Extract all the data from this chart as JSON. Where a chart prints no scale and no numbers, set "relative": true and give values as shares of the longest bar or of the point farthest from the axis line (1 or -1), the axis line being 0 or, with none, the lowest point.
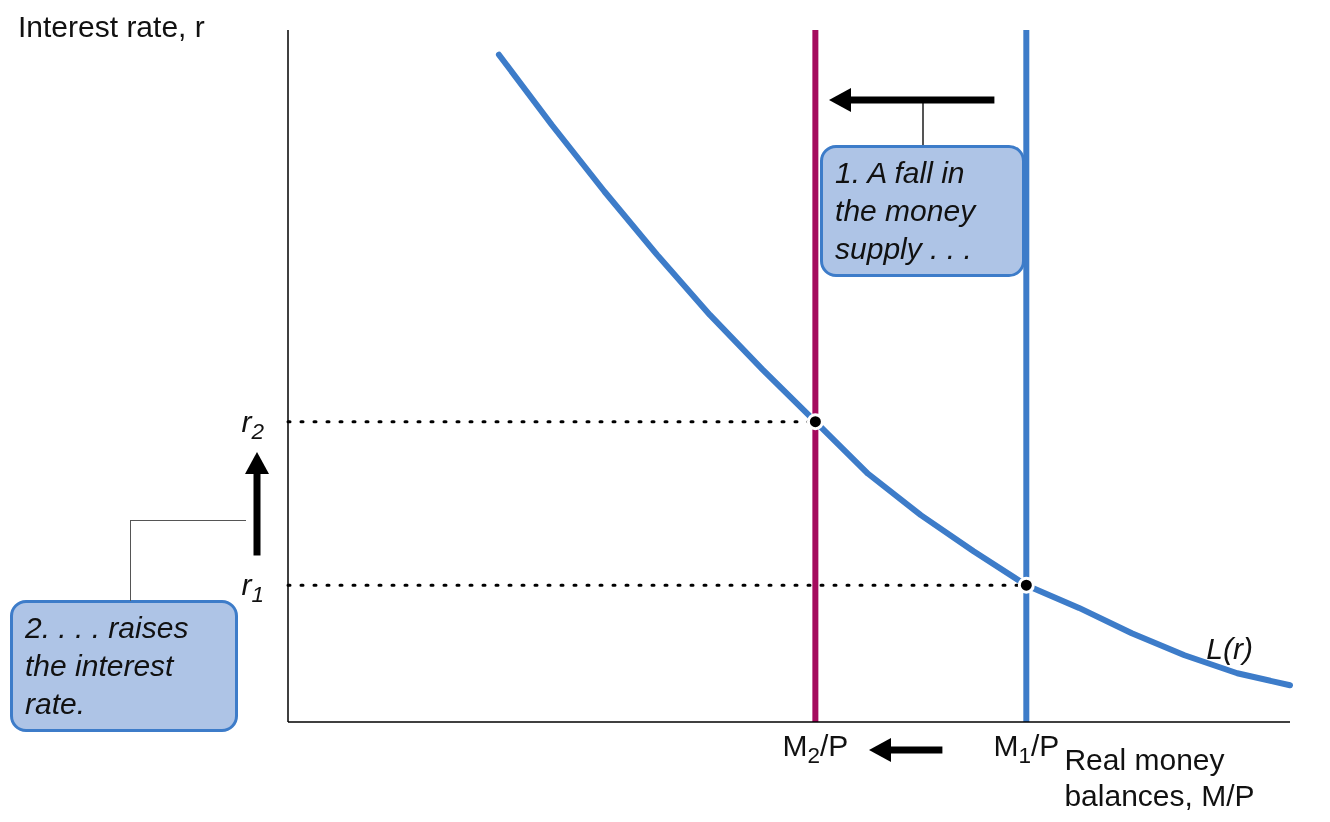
{
  "chart_data": {
    "type": "line",
    "relative": true,
    "xlabel": "Real money balances, M/P",
    "ylabel": "Interest rate, r",
    "categories": [
      null,
      null,
      null,
      null,
      null,
      null,
      null,
      null,
      null,
      null,
      "M$_{2}$/P",
      null,
      null,
      null,
      "M$_{1}$/P",
      null,
      null,
      null,
      null,
      null
    ],
    "series": [
      {
        "name": "L(r)",
        "color": "#3d7cc9",
        "values": [
          null,
          null,
          null,
          null,
          1.0,
          0.895,
          0.795,
          0.7,
          0.61,
          0.528,
          0.45,
          0.372,
          0.31,
          0.256,
          0.205,
          0.171,
          0.133,
          0.1,
          0.073,
          0.055
        ]
      },
      {
        "name": "r$_{2}$",
        "line_style": "dotted",
        "color": "#000000",
        "values": [
          0.45,
          0.45,
          0.45,
          0.45,
          0.45,
          0.45,
          0.45,
          0.45,
          0.45,
          0.45,
          0.45,
          null,
          null,
          null,
          null,
          null,
          null,
          null,
          null,
          null
        ]
      },
      {
        "name": "r$_{1}$",
        "line_style": "dotted",
        "color": "#000000",
        "values": [
          0.205,
          0.205,
          0.205,
          0.205,
          0.205,
          0.205,
          0.205,
          0.205,
          0.205,
          0.205,
          0.205,
          0.205,
          0.205,
          0.205,
          0.205,
          null,
          null,
          null,
          null,
          null
        ]
      },
      {
        "type": "scatter",
        "marker": "circle",
        "color": "#000000",
        "values": [
          null,
          null,
          null,
          null,
          null,
          null,
          null,
          null,
          null,
          null,
          0.45,
          null,
          null,
          null,
          0.205,
          null,
          null,
          null,
          null,
          null
        ]
      }
    ],
    "ref_lines": [
      {
        "axis": "x",
        "value": "M$_{2}$/P",
        "color": "#a50b5e"
      },
      {
        "axis": "x",
        "value": "M$_{1}$/P",
        "color": "#3d7cc9"
      }
    ],
    "annotations": [
      "1. A fall in the money supply . . .",
      "2. . . . raises the interest rate."
    ]
  }
}
